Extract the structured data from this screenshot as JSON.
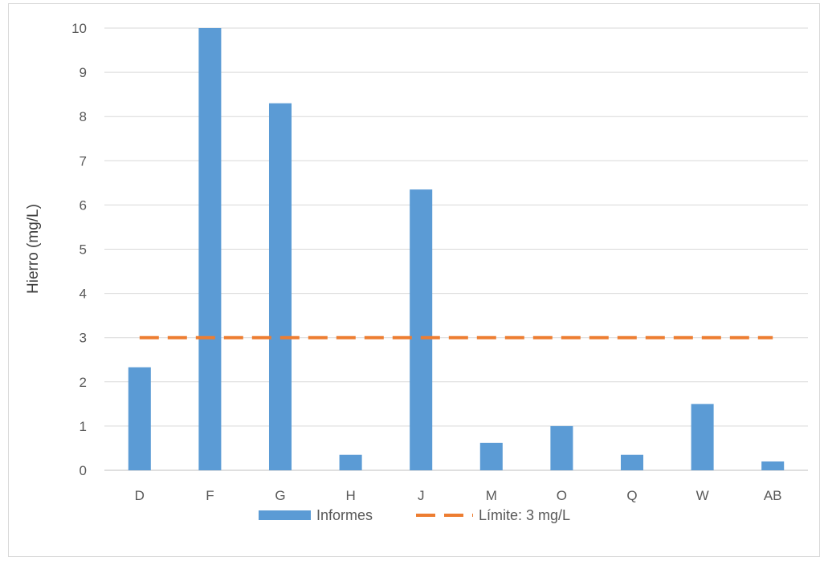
{
  "chart_data": {
    "type": "bar",
    "title": "",
    "xlabel": "",
    "ylabel": "Hierro (mg/L)",
    "categories": [
      "D",
      "F",
      "G",
      "H",
      "J",
      "M",
      "O",
      "Q",
      "W",
      "AB"
    ],
    "ylim": [
      0,
      10
    ],
    "yticks": [
      0,
      1,
      2,
      3,
      4,
      5,
      6,
      7,
      8,
      9,
      10
    ],
    "grid": true,
    "legend": "bottom",
    "series": [
      {
        "name": "Informes",
        "type": "bar",
        "color": "#5b9bd5",
        "values": [
          2.33,
          10.0,
          8.3,
          0.35,
          6.35,
          0.62,
          1.0,
          0.35,
          1.5,
          0.2
        ]
      },
      {
        "name": "Límite: 3 mg/L",
        "type": "line",
        "style": "dashed",
        "color": "#ed7d31",
        "values": [
          3,
          3,
          3,
          3,
          3,
          3,
          3,
          3,
          3,
          3
        ]
      }
    ]
  }
}
